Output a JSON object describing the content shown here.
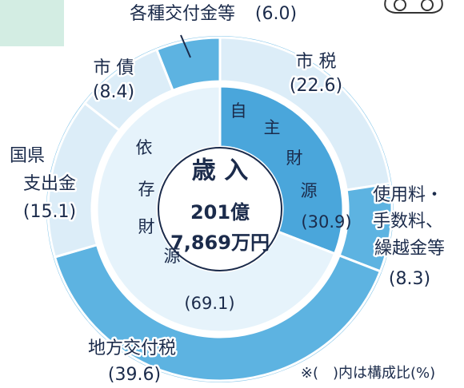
{
  "chart_data": {
    "type": "donut",
    "outer": {
      "categories": [
        [
          "市 税"
        ],
        [
          "使用料・",
          "手数料、",
          "繰越金等"
        ],
        [
          "地方交付税"
        ],
        [
          "国県",
          "支出金"
        ],
        [
          "市 債"
        ],
        [
          "各種交付金等"
        ]
      ],
      "values": [
        22.6,
        8.3,
        39.6,
        15.1,
        8.4,
        6.0
      ],
      "value_labels": [
        "(22.6)",
        "(8.3)",
        "(39.6)",
        "(15.1)",
        "(8.4)",
        "(6.0)"
      ],
      "colors": [
        "#dcedf8",
        "#5db3e1",
        "#5db3e1",
        "#dcedf8",
        "#dcedf8",
        "#5db3e1"
      ]
    },
    "inner": {
      "categories": [
        [
          "自",
          "主",
          "財",
          "源"
        ],
        [
          "依",
          "存",
          "財",
          "源"
        ]
      ],
      "values": [
        30.9,
        69.1
      ],
      "value_labels": [
        "(30.9)",
        "(69.1)"
      ],
      "colors": [
        "#4aa6db",
        "#e6f3fb"
      ]
    },
    "center_lines": [
      "歳 入",
      "201億",
      "7,869万円"
    ],
    "note": "※(　)内は構成比(%)"
  }
}
